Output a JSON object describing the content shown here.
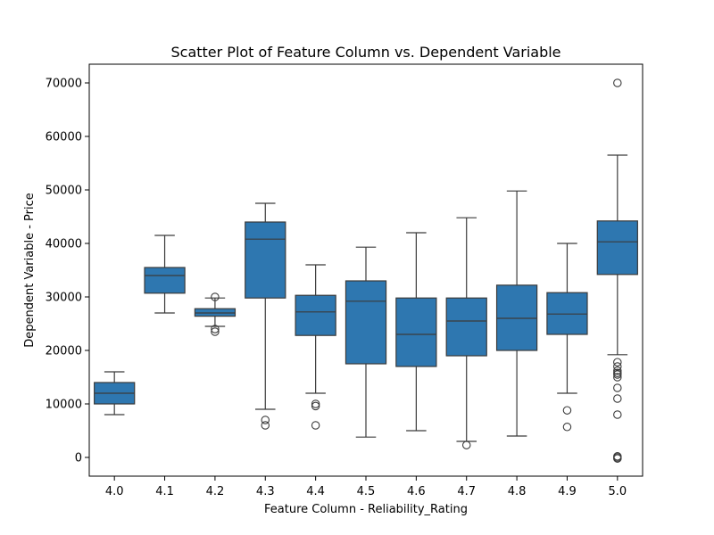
{
  "chart_data": {
    "type": "box",
    "title": "Scatter Plot of Feature Column vs. Dependent Variable",
    "xlabel": "Feature Column - Reliability_Rating",
    "ylabel": "Dependent Variable - Price",
    "ylim": [
      -3500,
      73500
    ],
    "yticks": [
      0,
      10000,
      20000,
      30000,
      40000,
      50000,
      60000,
      70000
    ],
    "grid": false,
    "box_color": "#2e77b0",
    "line_color": "#3b3b3b",
    "categories": [
      "4.0",
      "4.1",
      "4.2",
      "4.3",
      "4.4",
      "4.5",
      "4.6",
      "4.7",
      "4.8",
      "4.9",
      "5.0"
    ],
    "boxes": [
      {
        "category": "4.0",
        "whisker_low": 8000,
        "q1": 10000,
        "median": 12000,
        "q3": 14000,
        "whisker_high": 16000,
        "outliers": []
      },
      {
        "category": "4.1",
        "whisker_low": 27000,
        "q1": 30700,
        "median": 34000,
        "q3": 35500,
        "whisker_high": 41500,
        "outliers": []
      },
      {
        "category": "4.2",
        "whisker_low": 24500,
        "q1": 26400,
        "median": 27000,
        "q3": 27800,
        "whisker_high": 29800,
        "outliers": [
          30000,
          24000,
          23500
        ]
      },
      {
        "category": "4.3",
        "whisker_low": 9000,
        "q1": 29800,
        "median": 40800,
        "q3": 44000,
        "whisker_high": 47500,
        "outliers": [
          7000,
          6000
        ]
      },
      {
        "category": "4.4",
        "whisker_low": 12000,
        "q1": 22800,
        "median": 27200,
        "q3": 30300,
        "whisker_high": 36000,
        "outliers": [
          10000,
          9600,
          6000
        ]
      },
      {
        "category": "4.5",
        "whisker_low": 3800,
        "q1": 17500,
        "median": 29200,
        "q3": 33000,
        "whisker_high": 39300,
        "outliers": []
      },
      {
        "category": "4.6",
        "whisker_low": 5000,
        "q1": 17000,
        "median": 23000,
        "q3": 29800,
        "whisker_high": 42000,
        "outliers": []
      },
      {
        "category": "4.7",
        "whisker_low": 3000,
        "q1": 19000,
        "median": 25500,
        "q3": 29800,
        "whisker_high": 44800,
        "outliers": [
          2300
        ]
      },
      {
        "category": "4.8",
        "whisker_low": 4000,
        "q1": 20000,
        "median": 26000,
        "q3": 32200,
        "whisker_high": 49800,
        "outliers": []
      },
      {
        "category": "4.9",
        "whisker_low": 12000,
        "q1": 23000,
        "median": 26800,
        "q3": 30800,
        "whisker_high": 40000,
        "outliers": [
          8800,
          5700
        ]
      },
      {
        "category": "5.0",
        "whisker_low": 19200,
        "q1": 34200,
        "median": 40300,
        "q3": 44200,
        "whisker_high": 56500,
        "outliers": [
          70000,
          17800,
          17000,
          16200,
          15800,
          15500,
          15000,
          13000,
          11000,
          8000,
          200,
          0,
          -200
        ]
      }
    ]
  }
}
